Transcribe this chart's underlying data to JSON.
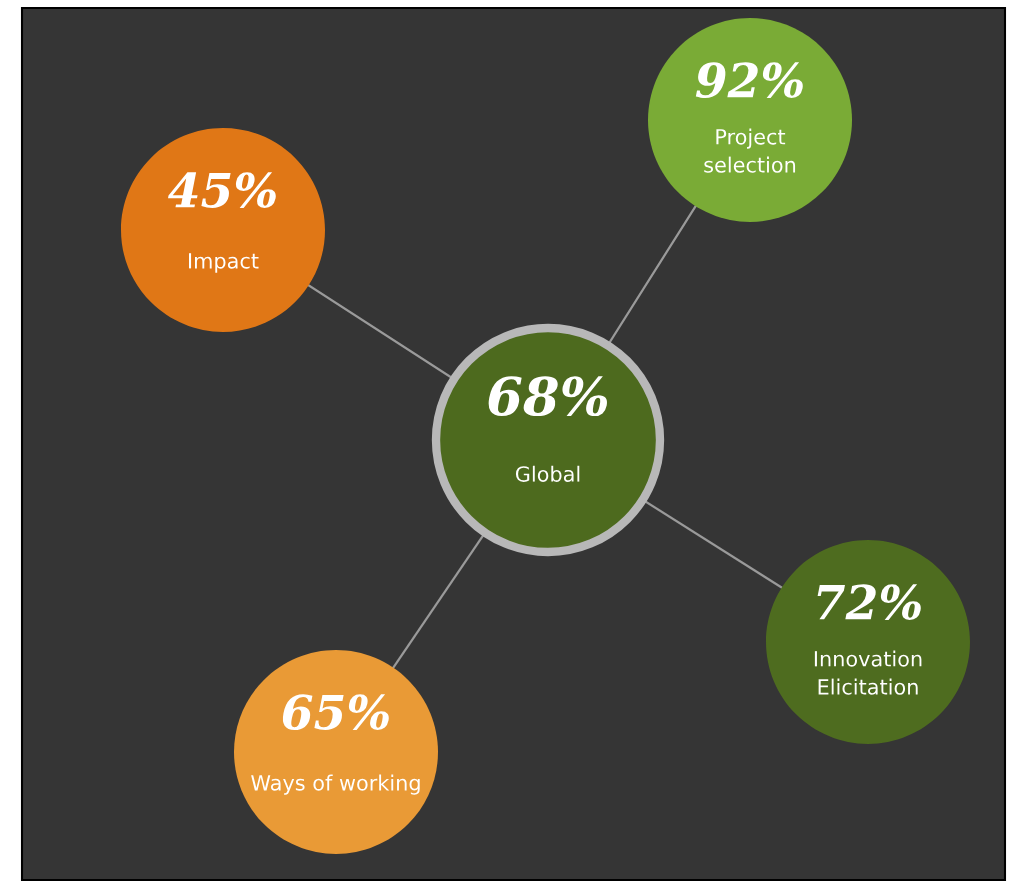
{
  "chart_data": {
    "type": "other",
    "categories": [
      "Global",
      "Impact",
      "Project selection",
      "Innovation Elicitation",
      "Ways of working"
    ],
    "values": [
      68,
      45,
      92,
      72,
      65
    ],
    "value_labels": [
      "68%",
      "45%",
      "92%",
      "72%",
      "65%"
    ],
    "colors": [
      "#4d6a1e",
      "#e07716",
      "#7aab36",
      "#4e6c1f",
      "#e99a36"
    ]
  }
}
